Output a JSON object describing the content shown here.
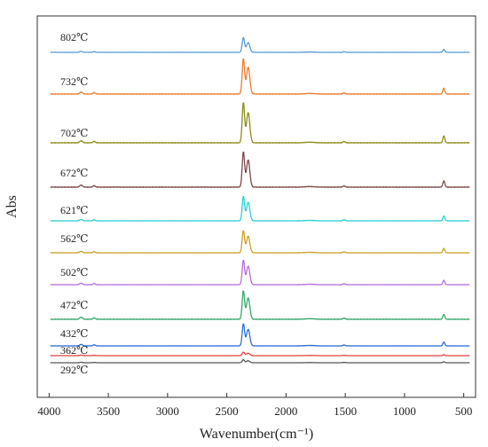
{
  "chart_data": {
    "type": "line",
    "title": "",
    "xlabel": "Wavenumber(cm⁻¹)",
    "ylabel": "Abs",
    "xlim": [
      4100,
      400
    ],
    "x_reversed": true,
    "x_ticks": [
      {
        "value": 4000,
        "label": "4000"
      },
      {
        "value": 3500,
        "label": "3500"
      },
      {
        "value": 3000,
        "label": "3000"
      },
      {
        "value": 2500,
        "label": "2500"
      },
      {
        "value": 2000,
        "label": "2000"
      },
      {
        "value": 1500,
        "label": "1500"
      },
      {
        "value": 1000,
        "label": "1000"
      },
      {
        "value": 500,
        "label": "500"
      }
    ],
    "y_ticks_shown": false,
    "grid": false,
    "legend": "none",
    "series": [
      {
        "name": "802℃",
        "color": "#5b9bd5",
        "peak_co2": 0.3,
        "peak_shoulder": 0.2,
        "peak_700": 0.06,
        "minor": 0.02
      },
      {
        "name": "732℃",
        "color": "#ed7d31",
        "peak_co2": 0.72,
        "peak_shoulder": 0.55,
        "peak_700": 0.12,
        "minor": 0.04
      },
      {
        "name": "702℃",
        "color": "#8c8c1c",
        "peak_co2": 0.82,
        "peak_shoulder": 0.62,
        "peak_700": 0.14,
        "minor": 0.04
      },
      {
        "name": "672℃",
        "color": "#7b4b4b",
        "peak_co2": 0.72,
        "peak_shoulder": 0.56,
        "peak_700": 0.13,
        "minor": 0.04
      },
      {
        "name": "621℃",
        "color": "#2ecfd0",
        "peak_co2": 0.5,
        "peak_shoulder": 0.38,
        "peak_700": 0.1,
        "minor": 0.03
      },
      {
        "name": "562℃",
        "color": "#c9a227",
        "peak_co2": 0.45,
        "peak_shoulder": 0.34,
        "peak_700": 0.09,
        "minor": 0.03
      },
      {
        "name": "502℃",
        "color": "#b370d8",
        "peak_co2": 0.5,
        "peak_shoulder": 0.38,
        "peak_700": 0.09,
        "minor": 0.03
      },
      {
        "name": "472℃",
        "color": "#3aa86b",
        "peak_co2": 0.58,
        "peak_shoulder": 0.44,
        "peak_700": 0.1,
        "minor": 0.04
      },
      {
        "name": "432℃",
        "color": "#2f6fd6",
        "peak_co2": 0.45,
        "peak_shoulder": 0.34,
        "peak_700": 0.08,
        "minor": 0.03
      },
      {
        "name": "362℃",
        "color": "#e04040",
        "peak_co2": 0.07,
        "peak_shoulder": 0.05,
        "peak_700": 0.02,
        "minor": 0.01
      },
      {
        "name": "292℃",
        "color": "#555555",
        "peak_co2": 0.06,
        "peak_shoulder": 0.04,
        "peak_700": 0.02,
        "minor": 0.01
      }
    ]
  }
}
